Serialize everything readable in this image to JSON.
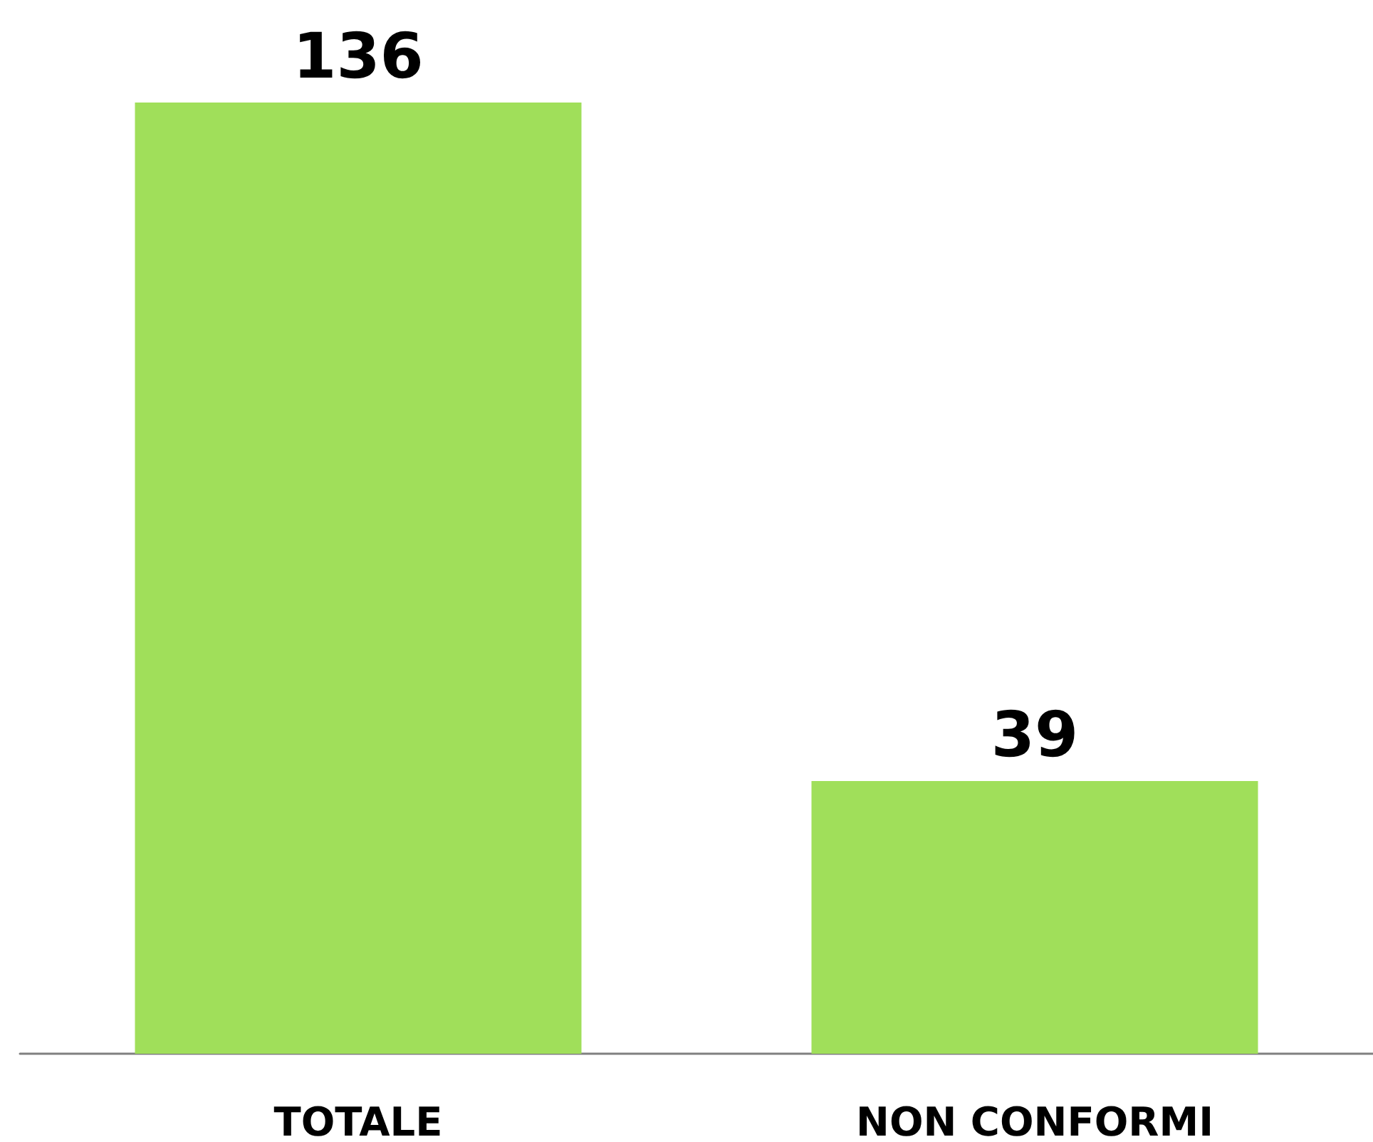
{
  "chart_data": {
    "type": "bar",
    "categories": [
      "TOTALE",
      "NON CONFORMI"
    ],
    "values": [
      136,
      39
    ],
    "color": "#a0df5a",
    "data_labels": true,
    "grid": false
  }
}
